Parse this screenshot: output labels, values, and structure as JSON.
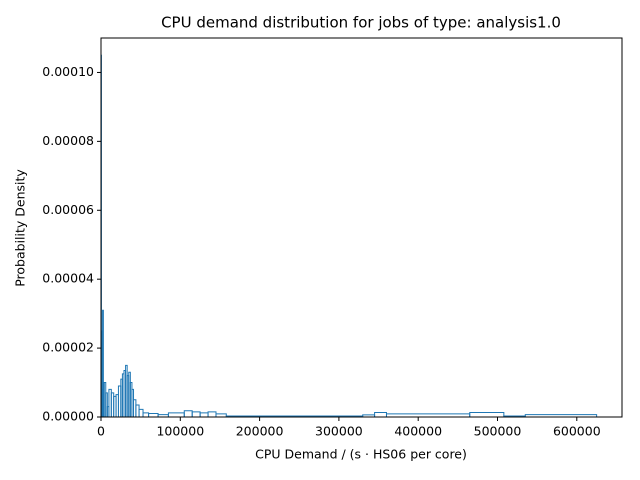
{
  "chart_data": {
    "type": "histogram",
    "title": "CPU demand distribution for jobs of type: analysis1.0",
    "xlabel": "CPU Demand / (s · HS06 per core)",
    "ylabel": "Probability Density",
    "color": "#1f77b4",
    "bins": [
      0,
      500,
      1000,
      2000,
      3000,
      4000,
      6000,
      8000,
      10000,
      13000,
      16000,
      19000,
      22000,
      25000,
      27000,
      29000,
      31000,
      33000,
      35000,
      37000,
      39000,
      41000,
      44000,
      48000,
      53000,
      60000,
      72000,
      85000,
      105000,
      115000,
      125000,
      135000,
      145000,
      158000,
      330000,
      345000,
      360000,
      465000,
      508000,
      535000,
      625000
    ],
    "values": [
      0.000105,
      2.5e-05,
      8e-06,
      3.1e-05,
      1e-05,
      1e-05,
      7e-06,
      3e-06,
      8e-06,
      7e-06,
      6e-06,
      6.5e-06,
      9e-06,
      1.1e-05,
      1.25e-05,
      1.35e-05,
      1.5e-05,
      1.2e-05,
      1.3e-05,
      1e-05,
      8e-06,
      5e-06,
      3.5e-06,
      2.2e-06,
      1.2e-06,
      1e-06,
      7e-07,
      1.2e-06,
      1.8e-06,
      1.5e-06,
      1.2e-06,
      1.5e-06,
      9e-07,
      3e-07,
      6e-07,
      1.3e-06,
      9e-07,
      1.3e-06,
      3e-07,
      7e-07
    ],
    "xlim": [
      0,
      657000
    ],
    "ylim": [
      0,
      0.00011
    ],
    "xticks": [
      0,
      100000,
      200000,
      300000,
      400000,
      500000,
      600000
    ],
    "yticks": [
      {
        "value": 0,
        "label": "0.00000"
      },
      {
        "value": 2e-05,
        "label": "0.00002"
      },
      {
        "value": 4e-05,
        "label": "0.00004"
      },
      {
        "value": 6e-05,
        "label": "0.00006"
      },
      {
        "value": 8e-05,
        "label": "0.00008"
      },
      {
        "value": 0.0001,
        "label": "0.00010"
      }
    ]
  }
}
